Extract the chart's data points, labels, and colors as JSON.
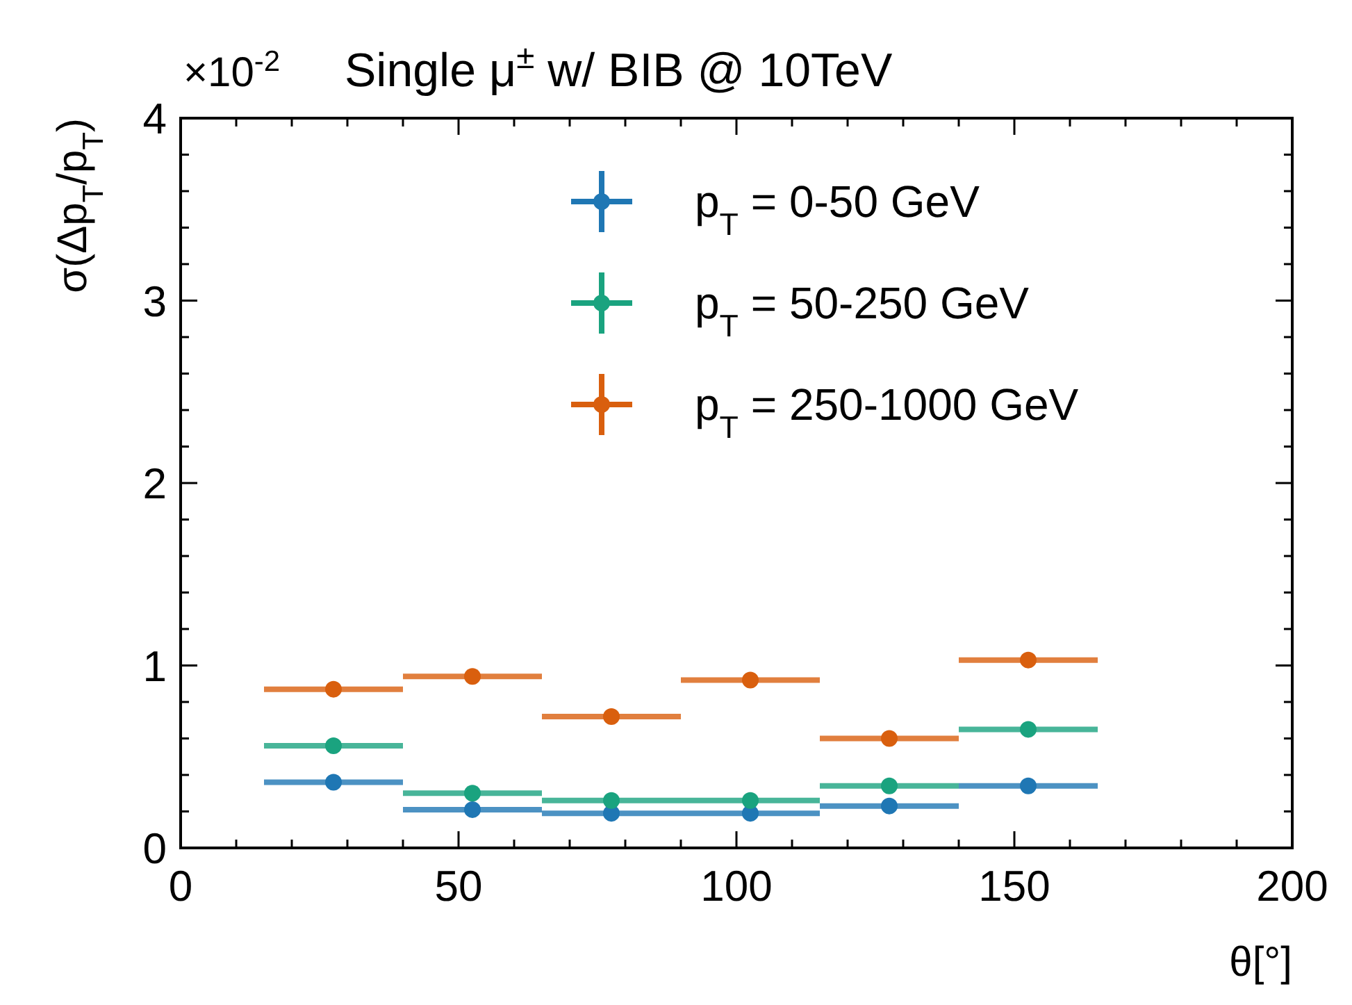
{
  "chart_data": {
    "type": "scatter",
    "title": "Single μ$^{±}$ w/ BIB @ 10TeV",
    "xlabel": "θ[°]",
    "ylabel": "σ(Δp$_{T}$/p$_{T}$)",
    "annotations": [
      "×10$^{-2}$"
    ],
    "series": [
      {
        "name": "p$_{T}$ = 0-50 GeV",
        "color": "#1f77b4",
        "x": [
          27.5,
          52.5,
          77.5,
          102.5,
          127.5,
          152.5
        ],
        "values": [
          0.36,
          0.21,
          0.19,
          0.19,
          0.23,
          0.34
        ],
        "xerrors": [
          12.5,
          12.5,
          12.5,
          12.5,
          12.5,
          12.5
        ]
      },
      {
        "name": "p$_{T}$ = 50-250 GeV",
        "color": "#1aa37f",
        "x": [
          27.5,
          52.5,
          77.5,
          102.5,
          127.5,
          152.5
        ],
        "values": [
          0.56,
          0.3,
          0.26,
          0.26,
          0.34,
          0.65
        ],
        "xerrors": [
          12.5,
          12.5,
          12.5,
          12.5,
          12.5,
          12.5
        ]
      },
      {
        "name": "p$_{T}$ = 250-1000 GeV",
        "color": "#d95f0e",
        "x": [
          27.5,
          52.5,
          77.5,
          102.5,
          127.5,
          152.5
        ],
        "values": [
          0.87,
          0.94,
          0.72,
          0.92,
          0.6,
          1.03
        ],
        "xerrors": [
          12.5,
          12.5,
          12.5,
          12.5,
          12.5,
          12.5
        ]
      }
    ],
    "xlim": [
      0,
      200
    ],
    "ylim": [
      0,
      4
    ],
    "xticks": [
      0,
      {
        "value": 10,
        "label": null
      },
      {
        "value": 20,
        "label": null
      },
      {
        "value": 30,
        "label": null
      },
      {
        "value": 40,
        "label": null
      },
      50,
      {
        "value": 60,
        "label": null
      },
      {
        "value": 70,
        "label": null
      },
      {
        "value": 80,
        "label": null
      },
      {
        "value": 90,
        "label": null
      },
      100,
      {
        "value": 110,
        "label": null
      },
      {
        "value": 120,
        "label": null
      },
      {
        "value": 130,
        "label": null
      },
      {
        "value": 140,
        "label": null
      },
      150,
      {
        "value": 160,
        "label": null
      },
      {
        "value": 170,
        "label": null
      },
      {
        "value": 180,
        "label": null
      },
      {
        "value": 190,
        "label": null
      },
      200
    ],
    "yticks": [
      0,
      {
        "value": 0.2,
        "label": null
      },
      {
        "value": 0.4,
        "label": null
      },
      {
        "value": 0.6,
        "label": null
      },
      {
        "value": 0.8,
        "label": null
      },
      1,
      {
        "value": 1.2,
        "label": null
      },
      {
        "value": 1.4,
        "label": null
      },
      {
        "value": 1.6,
        "label": null
      },
      {
        "value": 1.8,
        "label": null
      },
      2,
      {
        "value": 2.2,
        "label": null
      },
      {
        "value": 2.4,
        "label": null
      },
      {
        "value": 2.6,
        "label": null
      },
      {
        "value": 2.8,
        "label": null
      },
      3,
      {
        "value": 3.2,
        "label": null
      },
      {
        "value": 3.4,
        "label": null
      },
      {
        "value": 3.6,
        "label": null
      },
      {
        "value": 3.8,
        "label": null
      },
      4
    ],
    "legend": "top right",
    "marker": "circle",
    "grid": false
  }
}
